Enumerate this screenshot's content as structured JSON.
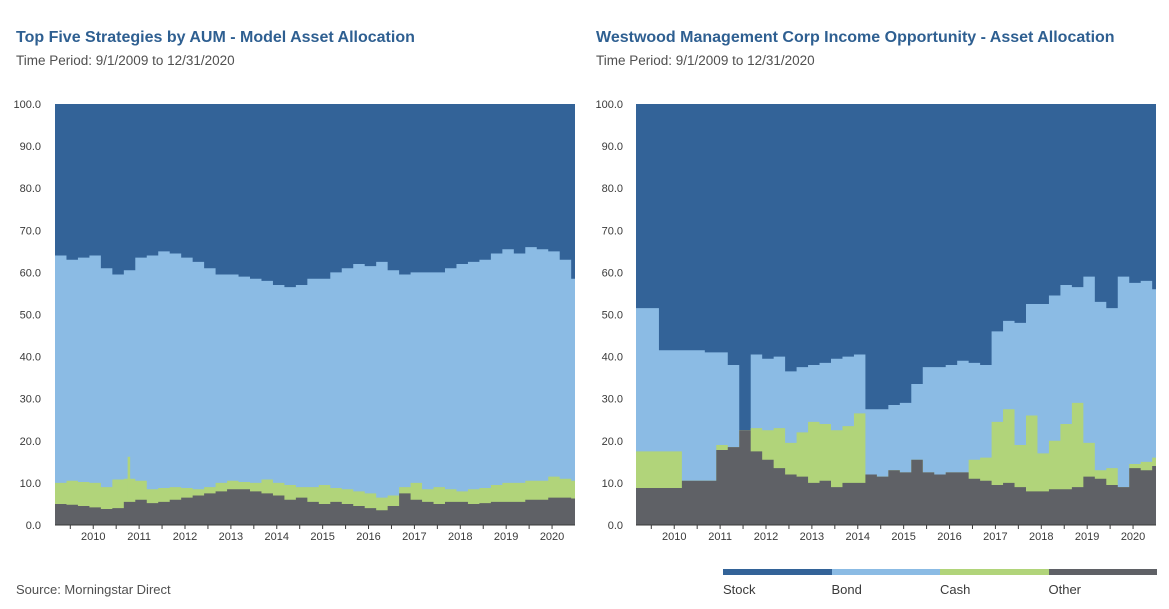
{
  "colors": {
    "Stock": "#336398",
    "Bond": "#8bbbe4",
    "Cash": "#b1d47a",
    "Other": "#5f6166"
  },
  "source": "Source: Morningstar Direct",
  "legend": [
    {
      "name": "Stock",
      "color": "#336398"
    },
    {
      "name": "Bond",
      "color": "#8bbbe4"
    },
    {
      "name": "Cash",
      "color": "#b1d47a"
    },
    {
      "name": "Other",
      "color": "#5f6166"
    }
  ],
  "chart_data": [
    {
      "type": "area",
      "title": "Top Five Strategies by AUM - Model Asset Allocation",
      "subtitle": "Time Period: 9/1/2009 to 12/31/2020",
      "x_range": [
        "2009-09",
        "2020-12"
      ],
      "ylim": [
        0,
        100
      ],
      "y_ticks": [
        "0.0",
        "10.0",
        "20.0",
        "30.0",
        "40.0",
        "50.0",
        "60.0",
        "70.0",
        "80.0",
        "90.0",
        "100.0"
      ],
      "x_tick_labels": [
        "2010",
        "2011",
        "2012",
        "2013",
        "2014",
        "2015",
        "2016",
        "2017",
        "2018",
        "2019",
        "2020"
      ],
      "stacking": "cumulative boundaries (Other, Other+Cash, Other+Cash+Bond, 100)",
      "x": [
        "2009-09",
        "2009-12",
        "2010-03",
        "2010-06",
        "2010-09",
        "2010-12",
        "2011-03",
        "2011-06",
        "2011-09",
        "2011-12",
        "2012-03",
        "2012-06",
        "2012-09",
        "2012-12",
        "2013-03",
        "2013-06",
        "2013-09",
        "2013-12",
        "2014-03",
        "2014-06",
        "2014-09",
        "2014-12",
        "2015-03",
        "2015-06",
        "2015-09",
        "2015-12",
        "2016-03",
        "2016-06",
        "2016-09",
        "2016-12",
        "2017-03",
        "2017-06",
        "2017-09",
        "2017-12",
        "2018-03",
        "2018-06",
        "2018-09",
        "2018-12",
        "2019-03",
        "2019-06",
        "2019-09",
        "2019-12",
        "2020-03",
        "2020-06",
        "2020-09",
        "2020-12"
      ],
      "series": [
        {
          "name": "Other",
          "values": [
            5.0,
            4.8,
            4.5,
            4.2,
            3.8,
            4.0,
            5.5,
            6.0,
            5.2,
            5.5,
            6.0,
            6.5,
            7.0,
            7.5,
            8.0,
            8.5,
            8.5,
            8.0,
            7.5,
            7.0,
            6.0,
            6.5,
            5.5,
            5.0,
            5.5,
            5.0,
            4.5,
            4.0,
            3.5,
            4.5,
            7.5,
            6.0,
            5.5,
            5.0,
            5.5,
            5.5,
            5.0,
            5.2,
            5.5,
            5.5,
            5.5,
            6.0,
            6.0,
            6.5,
            6.5,
            6.3
          ]
        },
        {
          "name": "Cash",
          "values": [
            10.0,
            10.5,
            10.2,
            10.0,
            9.0,
            10.8,
            11.0,
            10.5,
            8.5,
            8.8,
            9.0,
            8.8,
            8.5,
            9.0,
            10.0,
            10.5,
            10.2,
            10.0,
            10.8,
            10.0,
            9.5,
            9.0,
            9.0,
            9.5,
            8.8,
            8.5,
            8.0,
            7.5,
            6.5,
            7.0,
            9.0,
            10.0,
            8.5,
            9.0,
            8.5,
            8.0,
            8.5,
            8.8,
            9.5,
            10.0,
            10.0,
            10.5,
            10.5,
            11.5,
            11.0,
            10.5
          ]
        },
        {
          "name": "Bond",
          "values": [
            64.0,
            63.0,
            63.5,
            64.0,
            61.0,
            59.5,
            60.5,
            63.5,
            64.0,
            65.0,
            64.5,
            63.5,
            62.5,
            61.0,
            59.5,
            59.5,
            59.0,
            58.5,
            58.0,
            57.0,
            56.5,
            57.0,
            58.5,
            58.5,
            60.0,
            61.0,
            62.0,
            61.5,
            62.5,
            60.5,
            59.5,
            60.0,
            60.0,
            60.0,
            61.0,
            62.0,
            62.5,
            63.0,
            64.5,
            65.5,
            64.5,
            66.0,
            65.5,
            65.0,
            63.0,
            58.5
          ]
        },
        {
          "name": "Stock",
          "values": [
            100,
            100,
            100,
            100,
            100,
            100,
            100,
            100,
            100,
            100,
            100,
            100,
            100,
            100,
            100,
            100,
            100,
            100,
            100,
            100,
            100,
            100,
            100,
            100,
            100,
            100,
            100,
            100,
            100,
            100,
            100,
            100,
            100,
            100,
            100,
            100,
            100,
            100,
            100,
            100,
            100,
            100,
            100,
            100,
            100,
            100
          ]
        }
      ],
      "annotations": [
        {
          "x": "2011-03",
          "cash_top": 16.2
        }
      ]
    },
    {
      "type": "area",
      "title": "Westwood Management Corp Income Opportunity - Asset Allocation",
      "subtitle": "Time Period: 9/1/2009 to 12/31/2020",
      "x_range": [
        "2009-09",
        "2020-12"
      ],
      "ylim": [
        0,
        100
      ],
      "y_ticks": [
        "0.0",
        "10.0",
        "20.0",
        "30.0",
        "40.0",
        "50.0",
        "60.0",
        "70.0",
        "80.0",
        "90.0",
        "100.0"
      ],
      "x_tick_labels": [
        "2010",
        "2011",
        "2012",
        "2013",
        "2014",
        "2015",
        "2016",
        "2017",
        "2018",
        "2019",
        "2020"
      ],
      "stacking": "cumulative boundaries (Other, Other+Cash, Other+Cash+Bond, 100)",
      "x": [
        "2009-09",
        "2010-03",
        "2010-09",
        "2011-03",
        "2011-06",
        "2011-09",
        "2011-12",
        "2012-03",
        "2012-06",
        "2012-09",
        "2012-12",
        "2013-03",
        "2013-06",
        "2013-09",
        "2013-12",
        "2014-03",
        "2014-06",
        "2014-09",
        "2014-12",
        "2015-03",
        "2015-06",
        "2015-09",
        "2015-12",
        "2016-03",
        "2016-06",
        "2016-09",
        "2016-12",
        "2017-03",
        "2017-06",
        "2017-09",
        "2017-12",
        "2018-03",
        "2018-06",
        "2018-09",
        "2018-12",
        "2019-03",
        "2019-06",
        "2019-09",
        "2019-12",
        "2020-03",
        "2020-06",
        "2020-09",
        "2020-12"
      ],
      "series": [
        {
          "name": "Other",
          "values": [
            8.8,
            8.8,
            10.5,
            10.5,
            17.8,
            18.5,
            22.5,
            17.5,
            15.5,
            13.5,
            12.0,
            11.5,
            10.0,
            10.5,
            9.0,
            10.0,
            10.0,
            12.0,
            11.5,
            13.0,
            12.5,
            15.5,
            12.5,
            12.0,
            12.5,
            12.5,
            11.0,
            10.5,
            9.5,
            10.0,
            9.0,
            8.0,
            8.0,
            8.5,
            8.5,
            9.0,
            11.5,
            11.0,
            9.5,
            9.0,
            13.5,
            13.0,
            14.0
          ]
        },
        {
          "name": "Cash",
          "values": [
            17.5,
            17.5,
            10.5,
            10.5,
            19.0,
            18.5,
            22.5,
            23.0,
            22.5,
            23.0,
            19.5,
            22.0,
            24.5,
            24.0,
            22.5,
            23.5,
            26.5,
            12.0,
            11.5,
            13.0,
            12.5,
            15.5,
            12.5,
            12.0,
            12.5,
            12.5,
            15.5,
            16.0,
            24.5,
            27.5,
            19.0,
            26.0,
            17.0,
            20.0,
            24.0,
            29.0,
            19.5,
            13.0,
            13.5,
            9.0,
            14.5,
            15.0,
            16.0
          ]
        },
        {
          "name": "Bond",
          "values": [
            51.5,
            41.5,
            41.5,
            41.0,
            41.0,
            38.0,
            22.5,
            40.5,
            39.5,
            40.0,
            36.5,
            37.5,
            38.0,
            38.5,
            39.5,
            40.0,
            40.5,
            27.5,
            27.5,
            28.5,
            29.0,
            33.5,
            37.5,
            37.5,
            38.0,
            39.0,
            38.5,
            38.0,
            46.0,
            48.5,
            48.0,
            52.5,
            52.5,
            54.5,
            57.0,
            56.5,
            59.0,
            53.0,
            51.5,
            59.0,
            57.5,
            58.0,
            56.0
          ]
        },
        {
          "name": "Stock",
          "values": [
            100,
            100,
            100,
            100,
            100,
            100,
            100,
            100,
            100,
            100,
            100,
            100,
            100,
            100,
            100,
            100,
            100,
            100,
            100,
            100,
            100,
            100,
            100,
            100,
            100,
            100,
            100,
            100,
            100,
            100,
            100,
            100,
            100,
            100,
            100,
            100,
            100,
            100,
            100,
            100,
            100,
            100,
            100
          ]
        }
      ]
    }
  ]
}
